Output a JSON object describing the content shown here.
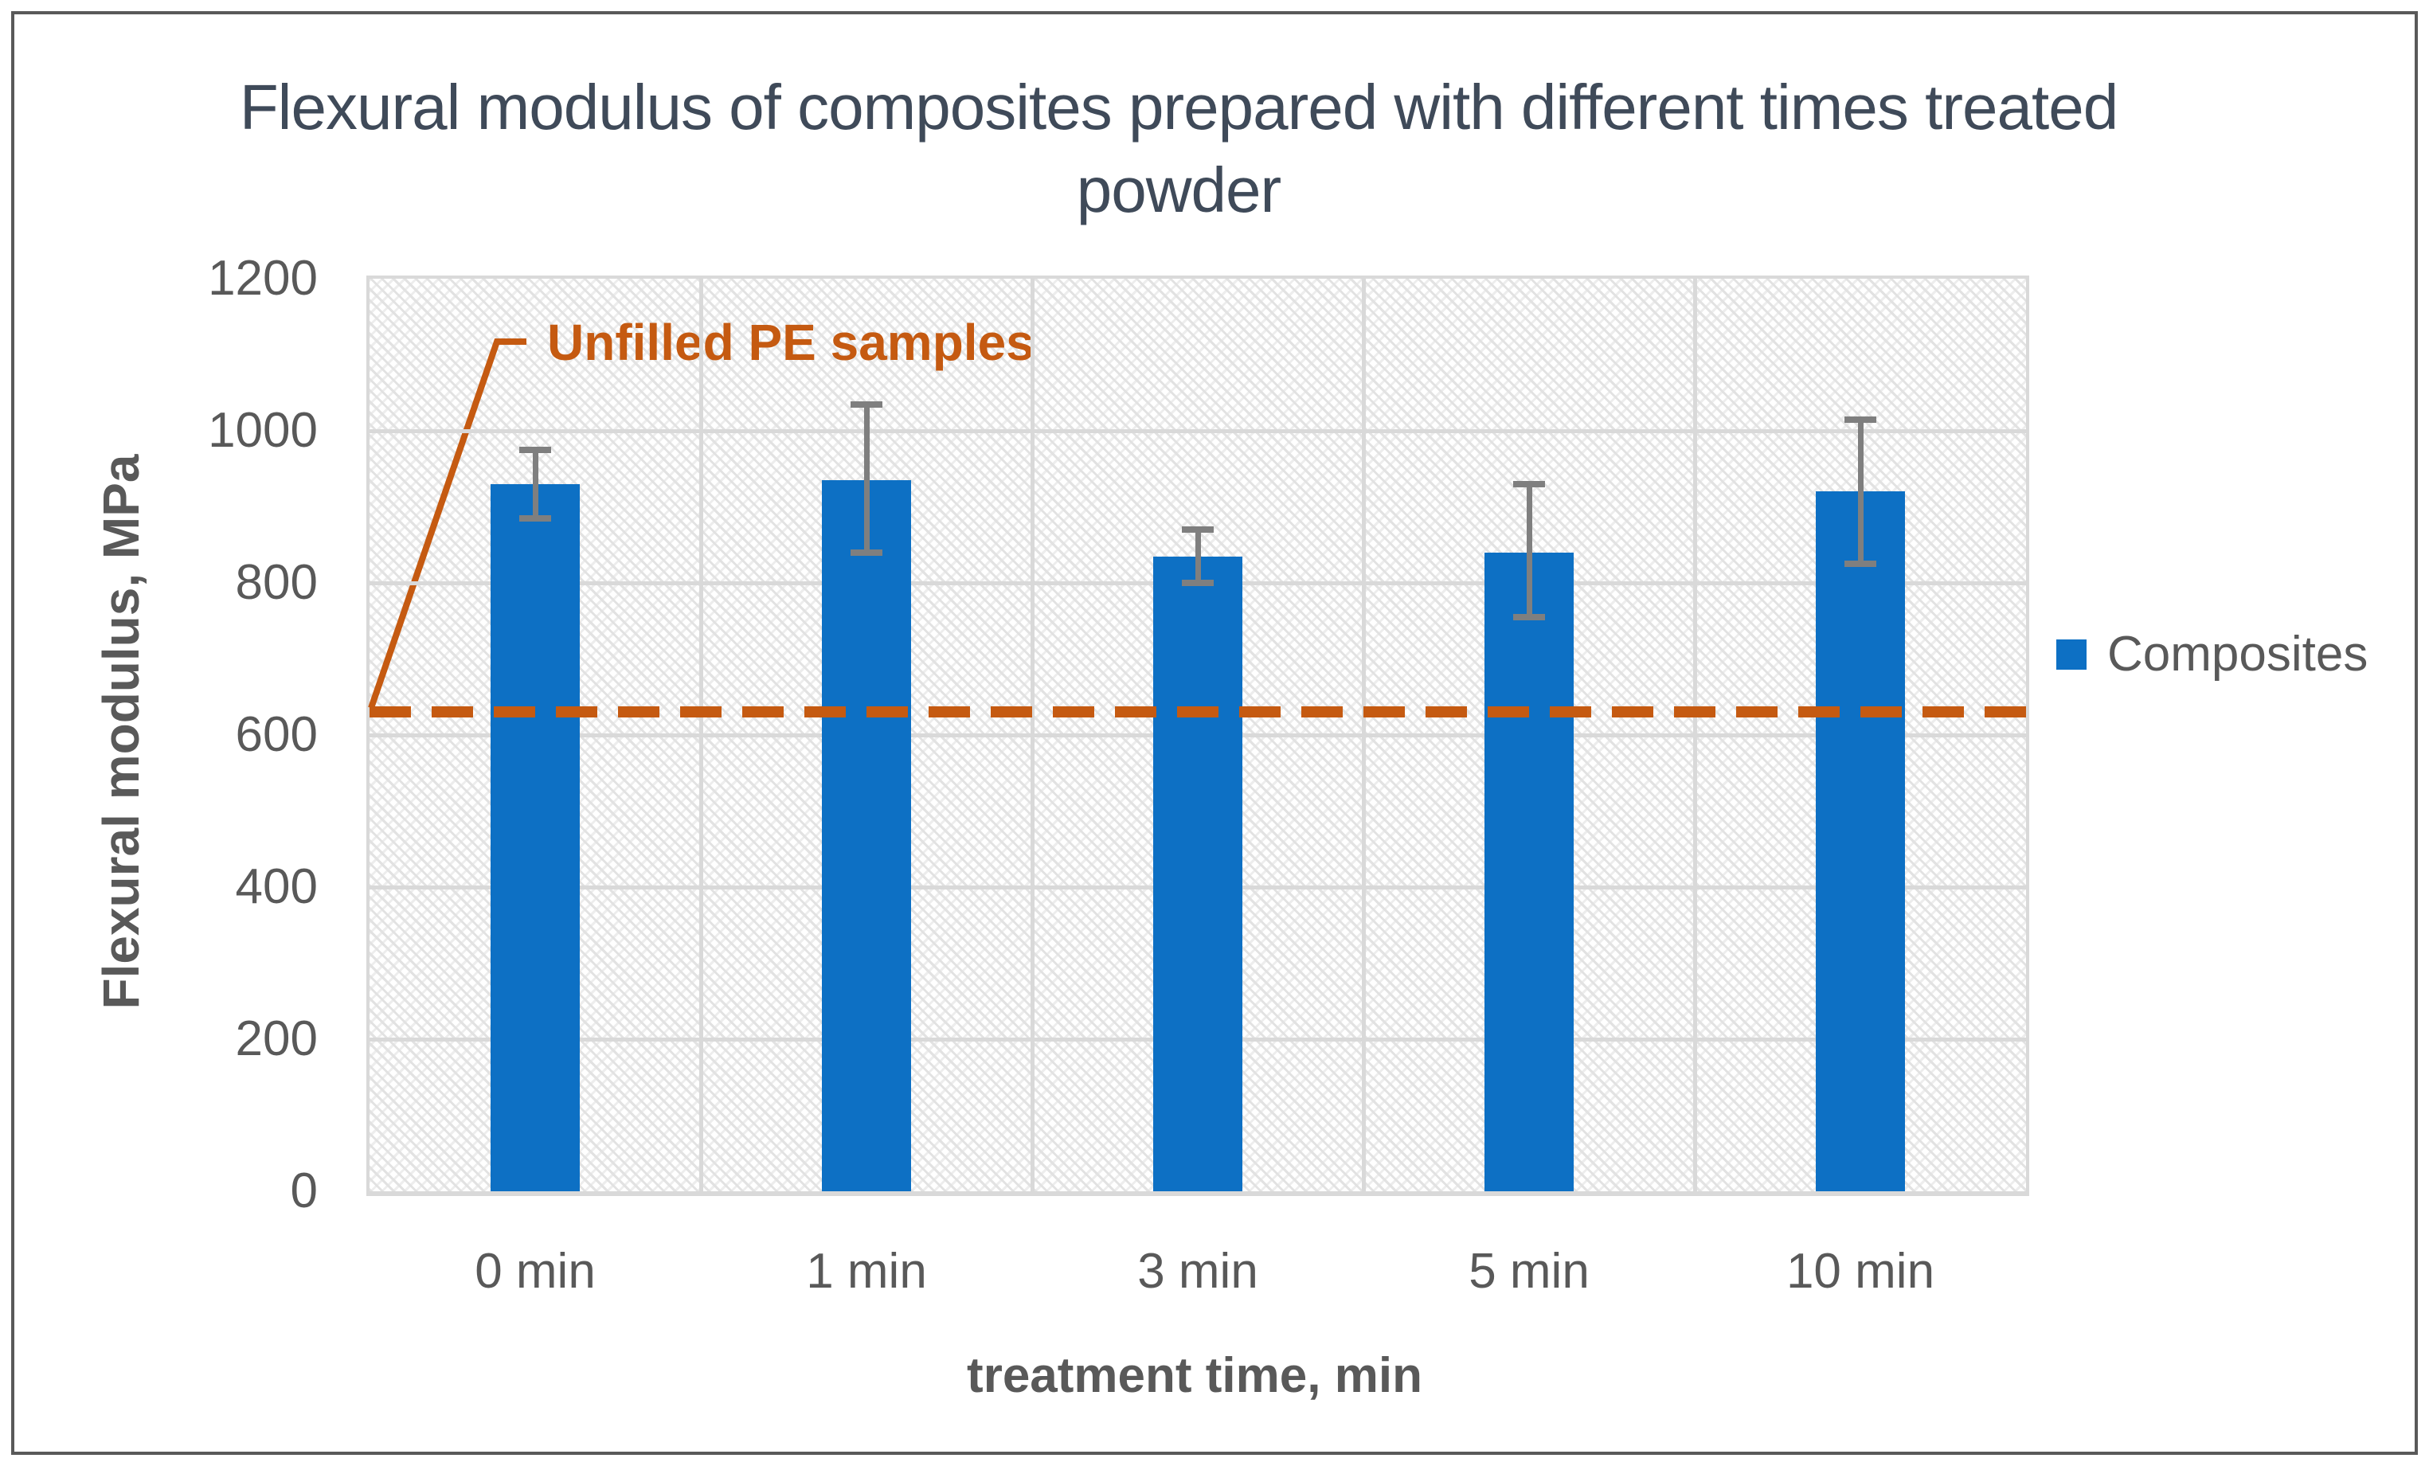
{
  "chart": {
    "title_line1": "Flexural modulus of composites prepared with different times treated",
    "title_line2": "powder",
    "y_axis_title": "Flexural modulus, MPa",
    "x_axis_title": "treatment time, min",
    "legend_label": "Composites",
    "annotation_text": "Unfilled PE samples"
  },
  "colors": {
    "bar": "#0D70C4",
    "reference_line": "#C55A11",
    "title": "#3F4A59",
    "axis_text": "#595959",
    "gridline": "#D9D9D9",
    "error_bar": "#7F7F7F",
    "frame_border": "#595959"
  },
  "chart_data": {
    "type": "bar",
    "title": "Flexural modulus of composites prepared with different times treated powder",
    "categories": [
      "0 min",
      "1 min",
      "3 min",
      "5 min",
      "10 min"
    ],
    "series": [
      {
        "name": "Composites",
        "values": [
          930,
          935,
          835,
          840,
          920
        ],
        "error_low": [
          885,
          840,
          800,
          755,
          825
        ],
        "error_high": [
          975,
          1035,
          870,
          930,
          1015
        ]
      }
    ],
    "reference_line": {
      "label": "Unfilled PE samples",
      "value": 630
    },
    "xlabel": "treatment time, min",
    "ylabel": "Flexural modulus, MPa",
    "ylim": [
      0,
      1200
    ],
    "ytick_step": 200,
    "grid": true,
    "legend_position": "right",
    "plot_background": "diagonal-crosshatch"
  }
}
